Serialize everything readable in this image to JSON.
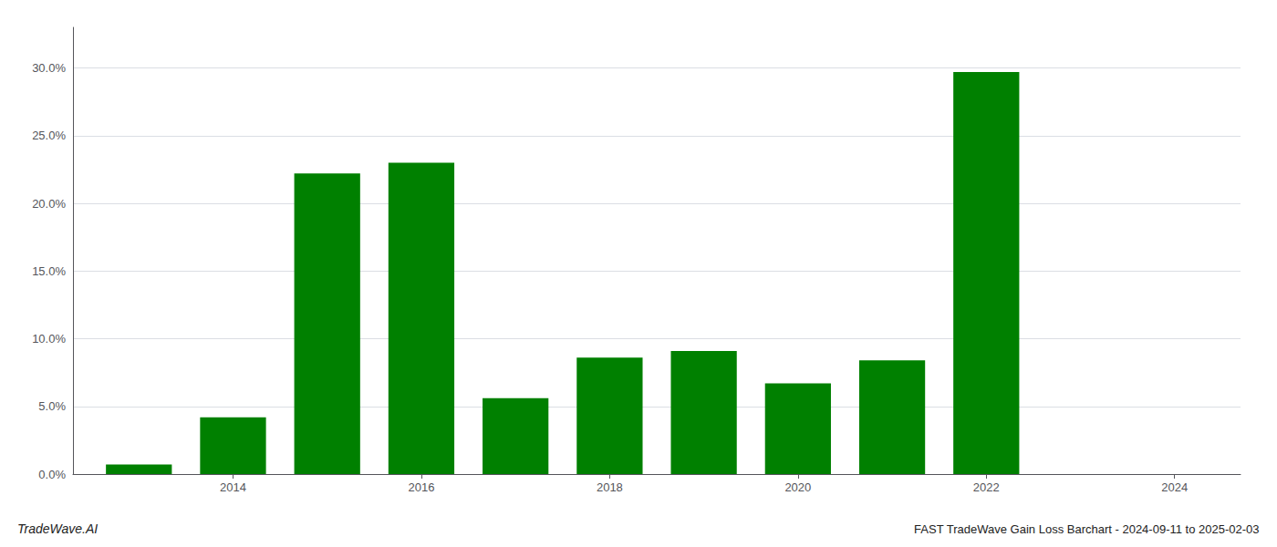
{
  "chart_data": {
    "type": "bar",
    "title": "FAST TradeWave Gain Loss Barchart - 2024-09-11 to 2025-02-03",
    "annotations": [
      "TradeWave.AI"
    ],
    "x": [
      2013,
      2014,
      2015,
      2016,
      2017,
      2018,
      2019,
      2020,
      2021,
      2022,
      2023
    ],
    "values": [
      0.007,
      0.042,
      0.222,
      0.23,
      0.056,
      0.086,
      0.091,
      0.067,
      0.084,
      0.297,
      0.0
    ],
    "color": "#008000",
    "xlim": [
      2012.3,
      2024.7
    ],
    "xticks": [
      2014,
      2016,
      2018,
      2020,
      2022,
      2024
    ],
    "ylim": [
      0,
      0.33
    ],
    "yticks": [
      {
        "value": 0.0,
        "label": "0.0%"
      },
      {
        "value": 0.05,
        "label": "5.0%"
      },
      {
        "value": 0.1,
        "label": "10.0%"
      },
      {
        "value": 0.15,
        "label": "15.0%"
      },
      {
        "value": 0.2,
        "label": "20.0%"
      },
      {
        "value": 0.25,
        "label": "25.0%"
      },
      {
        "value": 0.3,
        "label": "30.0%"
      }
    ],
    "grid": true
  }
}
